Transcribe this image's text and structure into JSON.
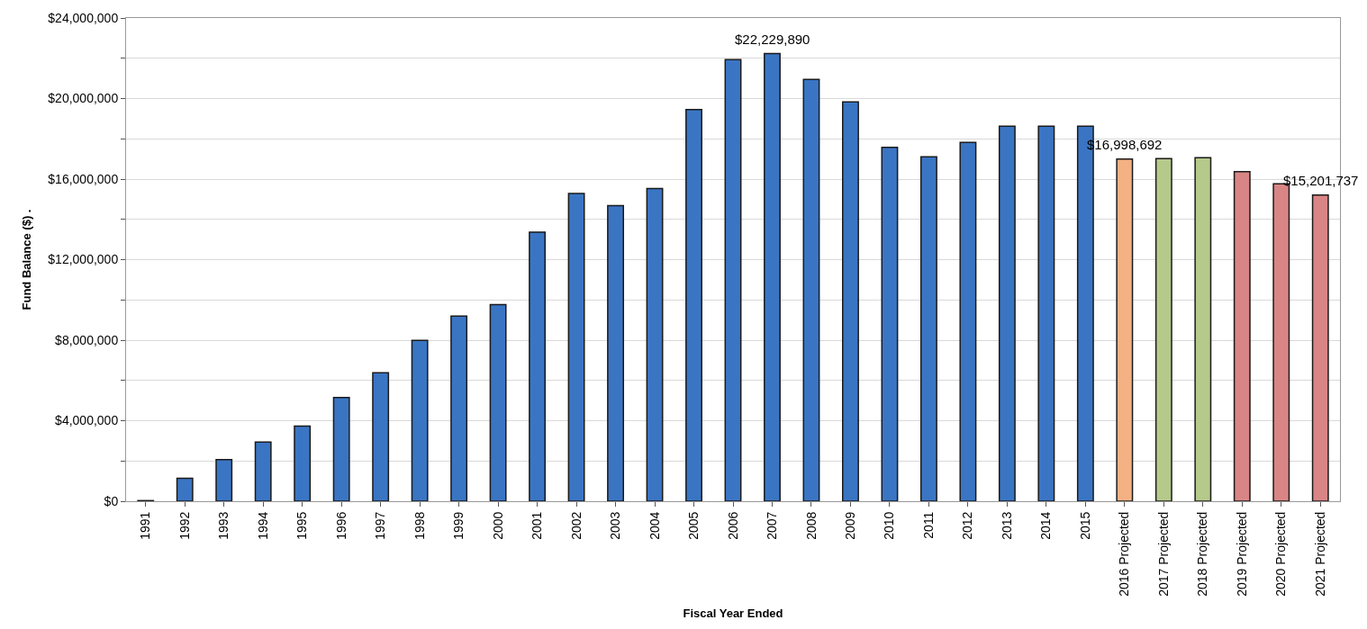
{
  "chart_data": {
    "type": "bar",
    "xlabel": "Fiscal Year Ended",
    "ylabel": "Fund Balance ($) .",
    "categories": [
      "1991",
      "1992",
      "1993",
      "1994",
      "1995",
      "1996",
      "1997",
      "1998",
      "1999",
      "2000",
      "2001",
      "2002",
      "2003",
      "2004",
      "2005",
      "2006",
      "2007",
      "2008",
      "2009",
      "2010",
      "2011",
      "2012",
      "2013",
      "2014",
      "2015",
      "2016 Projected",
      "2017 Projected",
      "2018 Projected",
      "2019 Projected",
      "2020 Projected",
      "2021 Projected"
    ],
    "values": [
      30000,
      1140000,
      2070000,
      2940000,
      3730000,
      5150000,
      6380000,
      7990000,
      9190000,
      9770000,
      13360000,
      15280000,
      14680000,
      15530000,
      19450000,
      21930000,
      22229890,
      20950000,
      19830000,
      17580000,
      17110000,
      17820000,
      18630000,
      18630000,
      18630000,
      16998692,
      17020000,
      17060000,
      16370000,
      15770000,
      15201737
    ],
    "value_labels": [
      null,
      null,
      null,
      null,
      null,
      null,
      null,
      null,
      null,
      null,
      null,
      null,
      null,
      null,
      null,
      null,
      "$22,229,890",
      null,
      null,
      null,
      null,
      null,
      null,
      null,
      null,
      "$16,998,692",
      null,
      null,
      null,
      null,
      "$15,201,737"
    ],
    "colors": [
      "#3a75c4",
      "#3a75c4",
      "#3a75c4",
      "#3a75c4",
      "#3a75c4",
      "#3a75c4",
      "#3a75c4",
      "#3a75c4",
      "#3a75c4",
      "#3a75c4",
      "#3a75c4",
      "#3a75c4",
      "#3a75c4",
      "#3a75c4",
      "#3a75c4",
      "#3a75c4",
      "#3a75c4",
      "#3a75c4",
      "#3a75c4",
      "#3a75c4",
      "#3a75c4",
      "#3a75c4",
      "#3a75c4",
      "#3a75c4",
      "#3a75c4",
      "#f4b183",
      "#b5c98a",
      "#b5c98a",
      "#d98585",
      "#d98585",
      "#d98585"
    ],
    "ylim": [
      0,
      24000000
    ],
    "yticks": [
      {
        "value": 0,
        "label": "$0"
      },
      {
        "value": 2000000,
        "label": null
      },
      {
        "value": 4000000,
        "label": "$4,000,000"
      },
      {
        "value": 6000000,
        "label": null
      },
      {
        "value": 8000000,
        "label": "$8,000,000"
      },
      {
        "value": 10000000,
        "label": null
      },
      {
        "value": 12000000,
        "label": "$12,000,000"
      },
      {
        "value": 14000000,
        "label": null
      },
      {
        "value": 16000000,
        "label": "$16,000,000"
      },
      {
        "value": 18000000,
        "label": null
      },
      {
        "value": 20000000,
        "label": "$20,000,000"
      },
      {
        "value": 22000000,
        "label": null
      },
      {
        "value": 24000000,
        "label": "$24,000,000"
      }
    ],
    "grid": "y"
  }
}
